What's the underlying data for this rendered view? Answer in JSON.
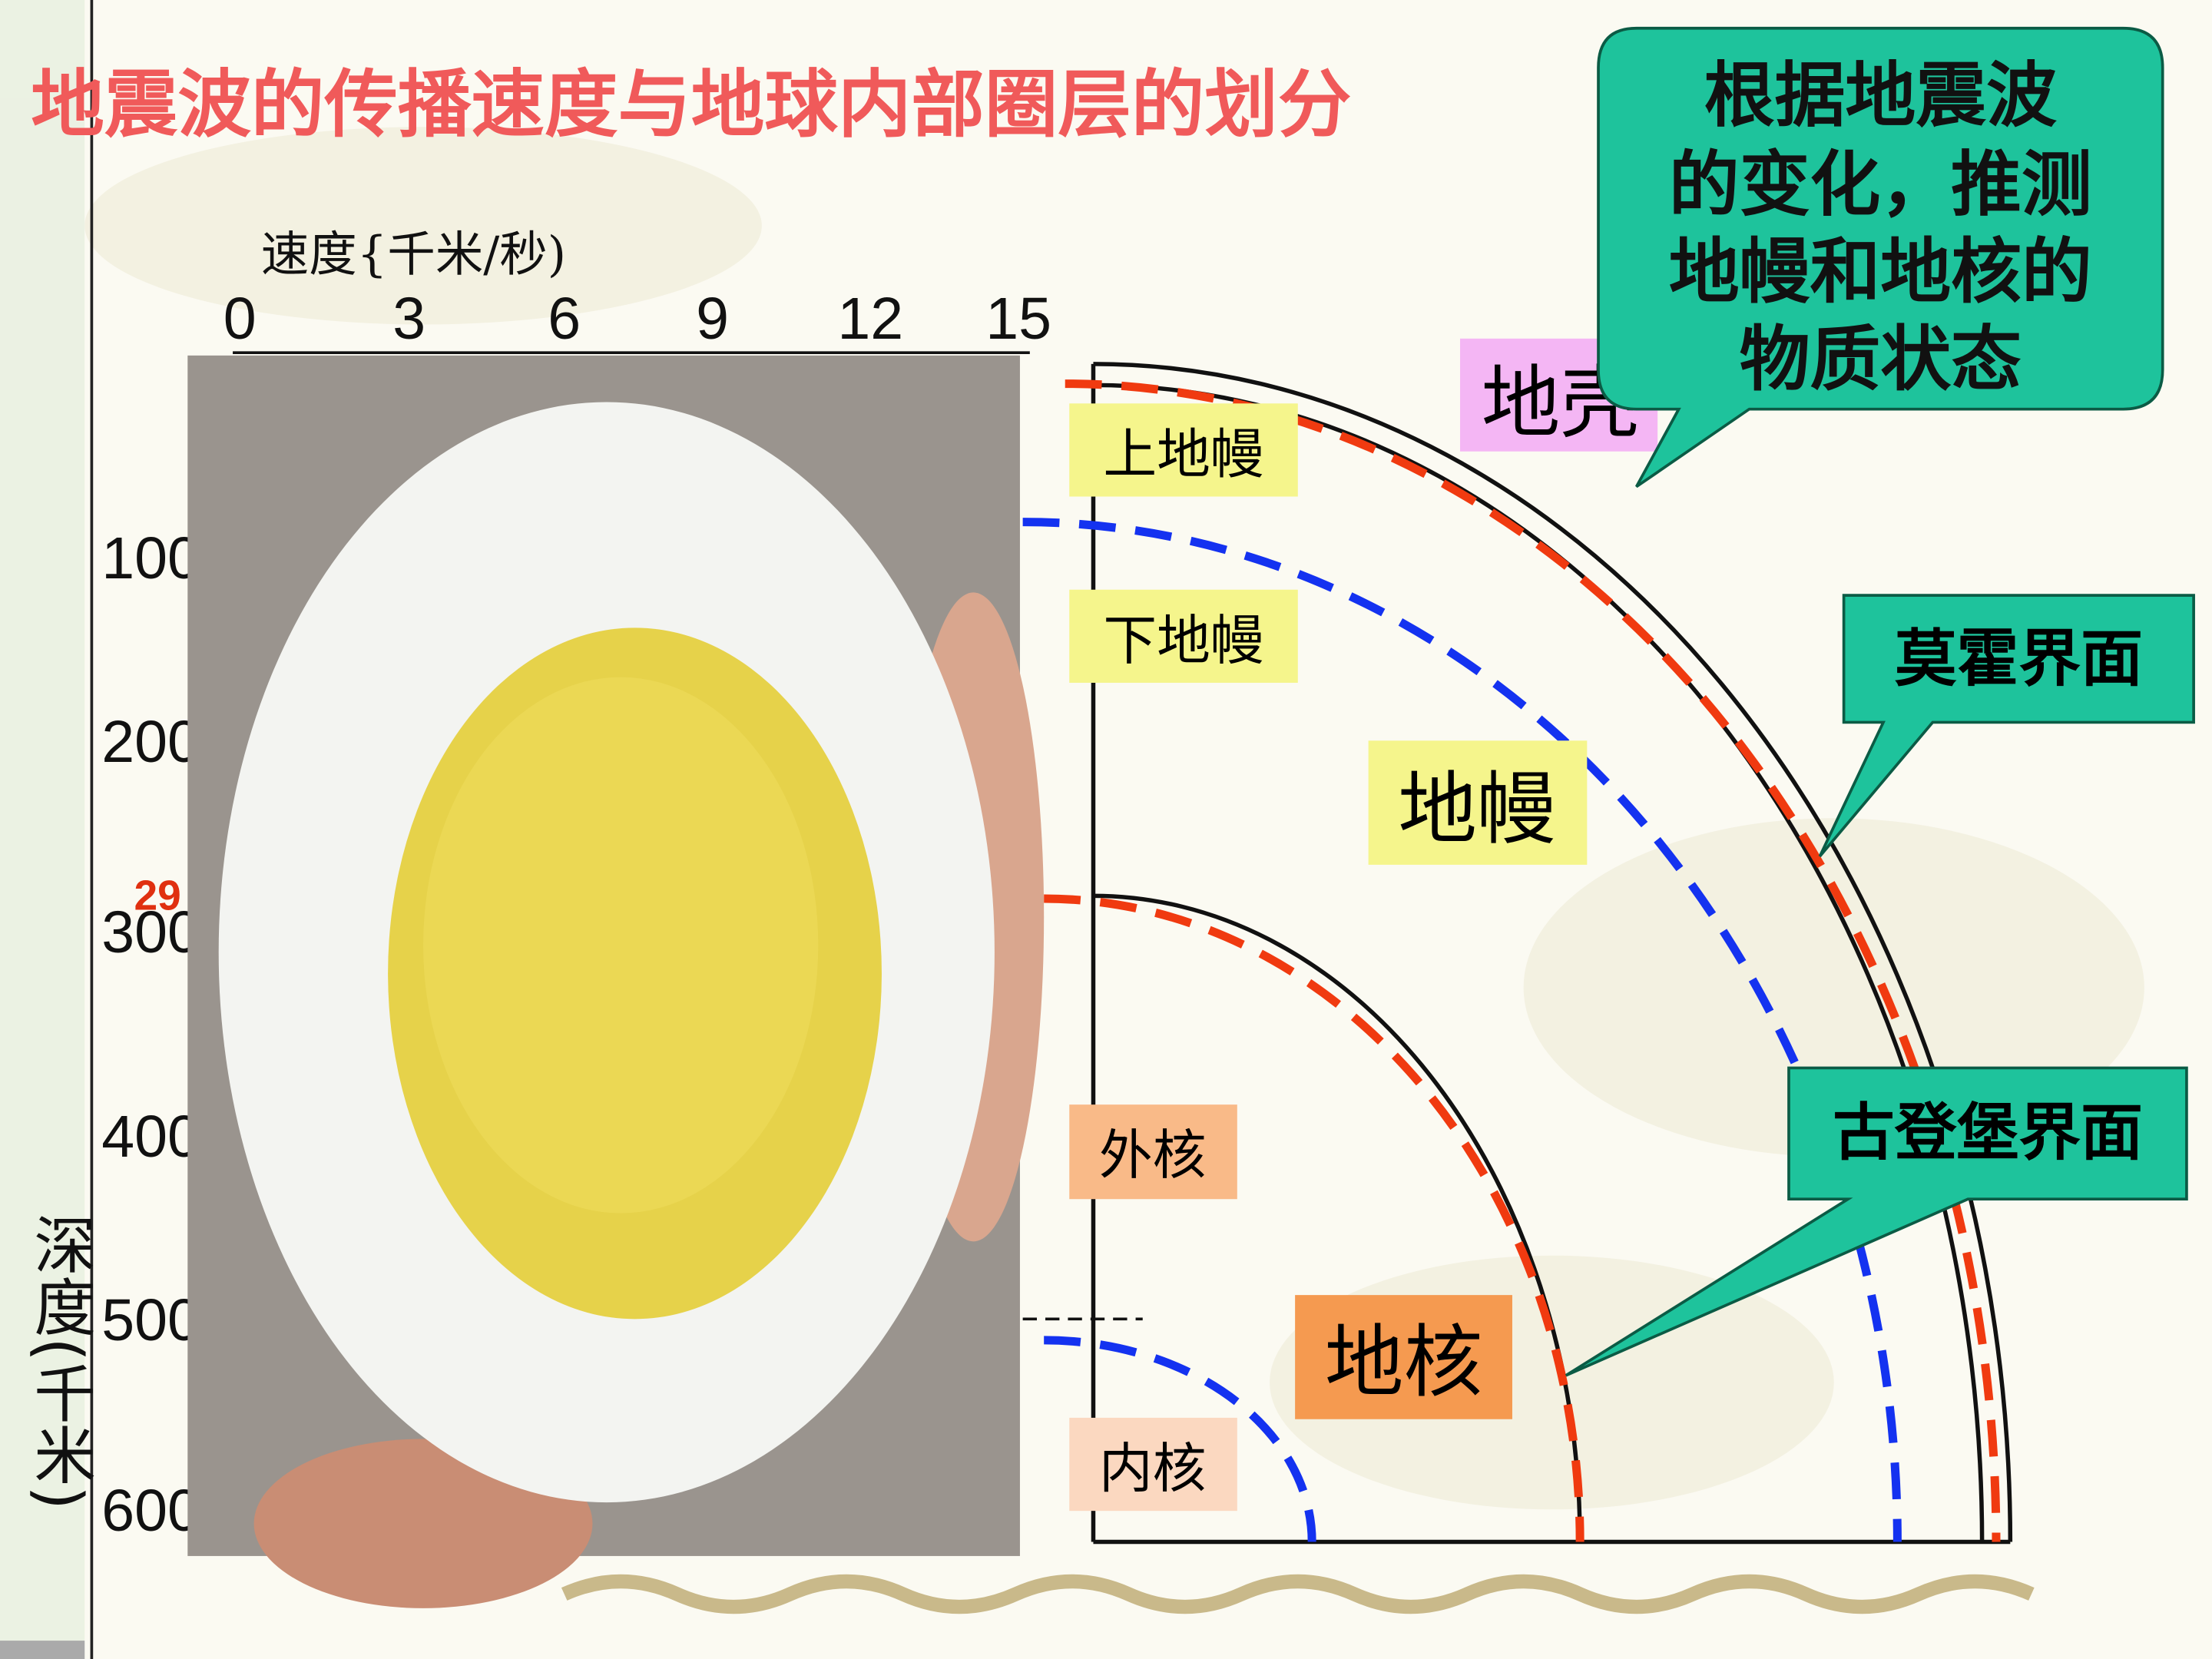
{
  "header": {
    "title": "地震波的传播速度与地球内部圈层的划分"
  },
  "callout": {
    "lines": [
      "根据地震波",
      "的变化，推测",
      "地幔和地核的",
      "物质状态"
    ]
  },
  "velocity_axis": {
    "label": "速度{千米/秒)",
    "ticks": [
      "0",
      "3",
      "6",
      "9",
      "12",
      "15"
    ]
  },
  "depth_axis": {
    "label": "深度(千米)",
    "ticks": [
      "100",
      "200",
      "300",
      "400",
      "500",
      "600"
    ],
    "marker": "29"
  },
  "layers": {
    "upper_mantle": "上地幔",
    "lower_mantle": "下地幔",
    "mantle": "地幔",
    "crust": "地壳",
    "outer_core": "外核",
    "core": "地核",
    "inner_core": "内核"
  },
  "boundaries": {
    "moho": "莫霍界面",
    "gutenberg": "古登堡界面"
  }
}
